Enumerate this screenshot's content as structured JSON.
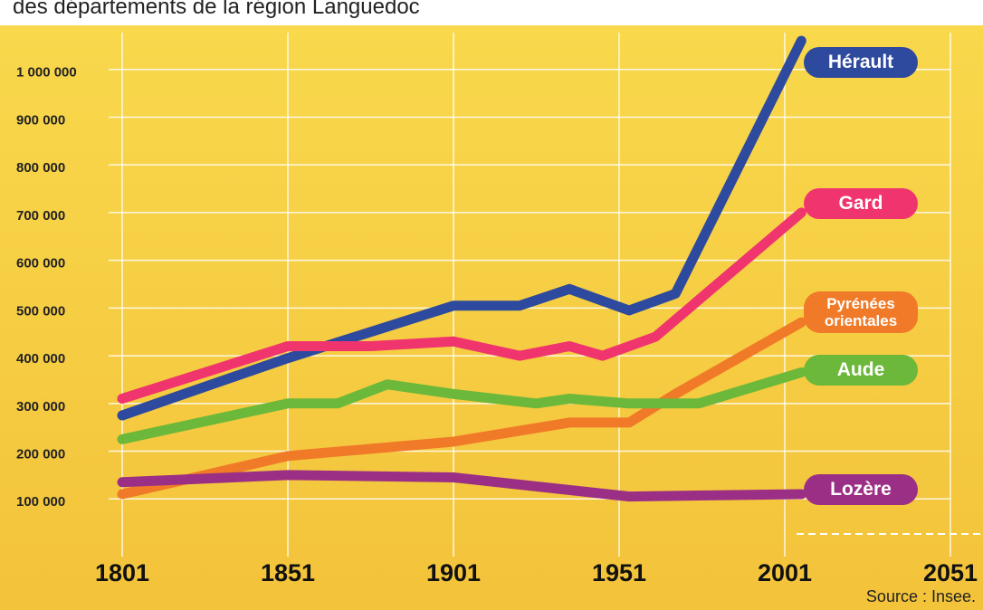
{
  "chart_data": {
    "type": "line",
    "title": "des départements de la région Languedoc",
    "source": "Source : Insee.",
    "xlim": [
      1801,
      2051
    ],
    "xticks": [
      1801,
      1851,
      1901,
      1951,
      2001,
      2051
    ],
    "ylim": [
      0,
      1100000
    ],
    "yticks": [
      {
        "value": 100000,
        "label": "100 000"
      },
      {
        "value": 200000,
        "label": "200 000"
      },
      {
        "value": 300000,
        "label": "300 000"
      },
      {
        "value": 400000,
        "label": "400 000"
      },
      {
        "value": 500000,
        "label": "500 000"
      },
      {
        "value": 600000,
        "label": "600 000"
      },
      {
        "value": 700000,
        "label": "700 000"
      },
      {
        "value": 800000,
        "label": "800 000"
      },
      {
        "value": 900000,
        "label": "900 000"
      },
      {
        "value": 1000000,
        "label": "1 000 000"
      }
    ],
    "grid": true,
    "series": [
      {
        "name": "Hérault",
        "color": "#2e4a9e",
        "x": [
          1801,
          1851,
          1876,
          1901,
          1921,
          1936,
          1954,
          1968,
          2006
        ],
        "values": [
          275000,
          395000,
          450000,
          505000,
          505000,
          540000,
          495000,
          530000,
          1060000
        ]
      },
      {
        "name": "Gard",
        "color": "#f0346e",
        "x": [
          1801,
          1851,
          1876,
          1901,
          1921,
          1936,
          1946,
          1962,
          2006
        ],
        "values": [
          310000,
          420000,
          420000,
          430000,
          400000,
          420000,
          400000,
          440000,
          700000
        ]
      },
      {
        "name": "Pyrénées orientales",
        "color": "#f07a28",
        "x": [
          1801,
          1851,
          1901,
          1936,
          1954,
          1968,
          2006
        ],
        "values": [
          110000,
          190000,
          220000,
          260000,
          260000,
          320000,
          470000
        ]
      },
      {
        "name": "Aude",
        "color": "#6cb83a",
        "x": [
          1801,
          1851,
          1866,
          1881,
          1901,
          1926,
          1936,
          1954,
          1975,
          2006
        ],
        "values": [
          225000,
          300000,
          300000,
          340000,
          320000,
          300000,
          310000,
          300000,
          300000,
          365000
        ]
      },
      {
        "name": "Lozère",
        "color": "#9b2f86",
        "x": [
          1801,
          1851,
          1901,
          1954,
          2006
        ],
        "values": [
          135000,
          150000,
          145000,
          105000,
          110000
        ]
      }
    ]
  }
}
